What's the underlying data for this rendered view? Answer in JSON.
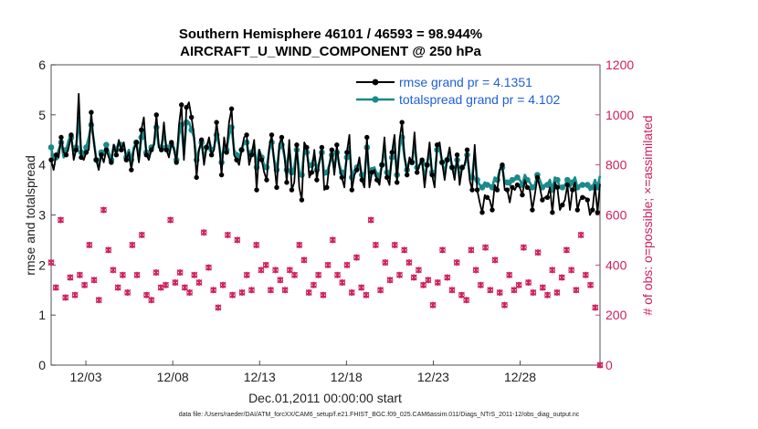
{
  "chart_data": {
    "type": "line",
    "title": "Southern Hemisphere 46101 / 46593 = 98.944%",
    "subtitle": "AIRCRAFT_U_WIND_COMPONENT @ 250 hPa",
    "xlabel": "Dec.01,2011 00:00:00 start",
    "ylabel": "rmse and totalspread",
    "ylabel_right": "# of obs: o=possible; ×=assimilated",
    "x_range": [
      1,
      32.6
    ],
    "ylim": [
      0,
      6
    ],
    "ylim_right": [
      0,
      1200
    ],
    "x_ticks": [
      3,
      8,
      13,
      18,
      23,
      28
    ],
    "x_tick_labels": [
      "12/03",
      "12/08",
      "12/13",
      "12/18",
      "12/23",
      "12/28"
    ],
    "y_ticks": [
      0,
      1,
      2,
      3,
      4,
      5,
      6
    ],
    "y_ticks_right": [
      0,
      200,
      400,
      600,
      800,
      1000,
      1200
    ],
    "legend_position": "top-right",
    "colors": {
      "rmse": "#000000",
      "spread": "#1a8a8a",
      "obs": "#cc1f5c",
      "legend_text": "#1f5fd6"
    },
    "series": [
      {
        "name": "rmse grand pr = 4.1351",
        "axis": "left",
        "values": [
          4.1,
          3.9,
          4.2,
          4.15,
          4.55,
          4.25,
          4.2,
          4.35,
          4.6,
          4.1,
          4.3,
          5.42,
          4.15,
          4.1,
          4.25,
          4.3,
          5.05,
          4.45,
          4.1,
          3.9,
          4.2,
          4.05,
          4.3,
          4.15,
          4.05,
          4.4,
          4.2,
          4.5,
          4.3,
          4.45,
          4.1,
          4.25,
          3.9,
          4.3,
          4.45,
          4.05,
          4.7,
          4.95,
          4.2,
          4.1,
          4.3,
          4.4,
          5.0,
          4.35,
          4.3,
          4.85,
          4.3,
          4.15,
          4.45,
          4.3,
          4.05,
          4.8,
          5.2,
          4.1,
          5.15,
          5.25,
          4.95,
          4.6,
          3.75,
          4.3,
          4.5,
          4.0,
          4.35,
          4.55,
          4.2,
          4.3,
          4.85,
          4.45,
          3.8,
          4.55,
          4.25,
          4.85,
          5.12,
          4.2,
          4.1,
          4.0,
          4.3,
          4.55,
          4.6,
          4.0,
          4.2,
          4.5,
          3.5,
          4.3,
          4.1,
          3.85,
          3.7,
          4.35,
          4.6,
          4.05,
          3.55,
          4.4,
          4.55,
          4.25,
          3.65,
          4.5,
          3.5,
          3.65,
          4.4,
          3.55,
          3.3,
          4.45,
          4.35,
          3.75,
          3.85,
          4.3,
          3.7,
          4.05,
          4.35,
          3.5,
          3.55,
          4.0,
          4.3,
          3.8,
          4.4,
          3.95,
          3.75,
          3.55,
          4.25,
          4.6,
          3.5,
          3.8,
          3.9,
          4.15,
          3.7,
          3.55,
          4.55,
          3.55,
          3.85,
          3.9,
          3.7,
          3.6,
          4.0,
          4.55,
          3.75,
          3.6,
          4.25,
          4.6,
          3.65,
          4.5,
          4.85,
          4.2,
          3.8,
          4.15,
          4.05,
          4.65,
          3.85,
          4.0,
          4.1,
          3.55,
          4.0,
          4.45,
          3.8,
          3.55,
          4.4,
          4.45,
          4.05,
          3.7,
          4.1,
          4.35,
          3.95,
          3.7,
          4.2,
          3.6,
          3.95,
          4.0,
          4.3,
          3.7,
          3.5,
          4.4,
          3.5,
          3.25,
          3.05,
          3.4,
          3.35,
          3.3,
          3.1,
          3.6,
          3.5,
          3.9,
          4.0,
          3.5,
          3.5,
          3.25,
          3.55,
          3.5,
          3.6,
          3.55,
          3.4,
          3.7,
          3.55,
          3.5,
          3.1,
          3.4,
          3.75,
          3.55,
          3.3,
          3.35,
          3.35,
          3.55,
          3.05,
          3.65,
          3.55,
          3.1,
          3.2,
          3.3,
          3.6,
          3.1,
          3.5,
          3.65,
          3.1,
          3.3,
          3.35,
          3.35,
          3.3,
          3.0,
          3.1,
          3.6,
          3.05,
          3.62
        ]
      },
      {
        "name": "totalspread grand pr = 4.102",
        "axis": "left",
        "values": [
          4.35,
          4.1,
          4.15,
          4.3,
          4.45,
          4.15,
          4.3,
          4.5,
          4.55,
          4.2,
          4.35,
          4.95,
          4.25,
          4.2,
          4.35,
          4.55,
          4.8,
          4.5,
          4.1,
          3.95,
          4.25,
          4.2,
          4.4,
          4.25,
          4.1,
          4.4,
          4.3,
          4.45,
          4.4,
          4.4,
          4.15,
          4.3,
          4.1,
          4.35,
          4.45,
          4.1,
          4.55,
          4.7,
          4.25,
          4.15,
          4.35,
          4.4,
          4.75,
          4.35,
          4.35,
          4.65,
          4.35,
          4.2,
          4.4,
          4.35,
          4.1,
          4.6,
          4.8,
          4.2,
          4.85,
          4.85,
          4.7,
          4.55,
          4.1,
          4.3,
          4.45,
          4.1,
          4.35,
          4.5,
          4.3,
          4.35,
          4.6,
          4.4,
          4.05,
          4.4,
          4.3,
          4.6,
          4.75,
          4.3,
          4.2,
          4.1,
          4.3,
          4.45,
          4.45,
          4.1,
          4.25,
          4.4,
          3.95,
          4.3,
          4.15,
          4.0,
          3.95,
          4.3,
          4.45,
          4.1,
          3.9,
          4.3,
          4.4,
          4.2,
          3.9,
          4.35,
          3.85,
          3.95,
          4.3,
          3.85,
          3.8,
          4.3,
          4.25,
          3.95,
          4.0,
          4.2,
          3.9,
          4.05,
          4.25,
          3.8,
          3.85,
          4.0,
          4.2,
          3.9,
          4.25,
          4.0,
          3.85,
          3.8,
          4.15,
          4.35,
          3.75,
          3.9,
          3.95,
          4.05,
          3.8,
          3.75,
          4.35,
          3.75,
          3.9,
          3.95,
          3.8,
          3.75,
          4.0,
          4.35,
          3.85,
          3.75,
          4.15,
          4.4,
          3.8,
          4.35,
          4.55,
          4.15,
          3.9,
          4.1,
          4.05,
          4.45,
          3.95,
          4.0,
          4.05,
          3.75,
          4.0,
          4.3,
          3.85,
          3.75,
          4.3,
          4.35,
          4.05,
          3.85,
          4.1,
          4.25,
          3.95,
          3.8,
          4.1,
          3.75,
          3.95,
          4.0,
          4.2,
          3.8,
          3.75,
          4.25,
          3.7,
          3.6,
          3.55,
          3.65,
          3.6,
          3.6,
          3.55,
          3.75,
          3.7,
          3.9,
          3.95,
          3.65,
          3.65,
          3.6,
          3.7,
          3.7,
          3.75,
          3.7,
          3.6,
          3.8,
          3.7,
          3.65,
          3.55,
          3.6,
          3.8,
          3.7,
          3.55,
          3.6,
          3.6,
          3.7,
          3.5,
          3.75,
          3.7,
          3.55,
          3.55,
          3.6,
          3.7,
          3.55,
          3.65,
          3.75,
          3.55,
          3.6,
          3.6,
          3.6,
          3.6,
          3.5,
          3.55,
          3.7,
          3.55,
          3.78
        ]
      },
      {
        "name": "obs possible",
        "axis": "right",
        "marker": "o",
        "values": [
          410,
          590,
          310,
          285,
          580,
          440,
          270,
          330,
          350,
          430,
          280,
          330,
          360,
          540,
          320,
          400,
          480,
          530,
          340,
          420,
          260,
          300,
          620,
          320,
          460,
          400,
          380,
          370,
          310,
          280,
          360,
          450,
          290,
          340,
          480,
          290,
          360,
          440,
          520,
          310,
          280,
          380,
          260,
          470,
          370,
          300,
          310,
          330,
          320,
          420,
          580,
          470,
          330,
          300,
          370,
          410,
          310,
          340,
          290,
          420,
          360,
          300,
          330,
          460,
          530,
          400,
          390,
          280,
          300,
          360,
          230,
          460,
          320,
          310,
          520,
          330,
          280,
          380,
          500,
          350,
          290,
          420,
          360,
          310,
          300,
          410,
          480,
          350,
          380,
          290,
          400,
          470,
          300,
          360,
          380,
          450,
          340,
          270,
          300,
          420,
          380,
          410,
          360,
          380,
          480,
          300,
          420,
          350,
          290,
          380,
          320,
          430,
          360,
          340,
          280,
          300,
          400,
          350,
          500,
          410,
          360,
          390,
          330,
          310,
          400,
          380,
          290,
          260,
          430,
          470,
          310,
          380,
          280,
          420,
          580,
          350,
          480,
          320,
          300,
          360,
          410,
          290,
          340,
          300,
          480,
          310,
          360,
          400,
          460,
          350,
          410,
          620,
          350,
          300,
          380,
          360,
          320,
          290,
          340,
          380,
          240,
          400,
          330,
          300,
          460,
          490,
          350,
          280,
          300,
          320,
          410,
          370,
          280,
          190,
          260,
          300,
          460,
          420,
          380,
          350,
          320,
          200,
          470,
          350,
          300,
          380,
          420,
          330,
          290,
          310,
          240,
          280,
          360,
          380,
          300,
          260,
          320,
          420,
          470,
          350,
          330,
          340,
          290,
          470,
          450,
          410,
          310,
          260,
          280,
          330,
          380,
          420,
          290,
          400,
          350,
          310,
          460,
          500,
          380,
          330,
          300,
          420,
          520,
          480,
          360,
          290,
          320,
          390,
          230,
          210,
          0
        ],
        "note": "nearly identical to assimilated counts"
      },
      {
        "name": "obs assimilated",
        "axis": "right",
        "marker": "x",
        "values": "same as obs possible (overlapping markers)"
      }
    ]
  }
}
